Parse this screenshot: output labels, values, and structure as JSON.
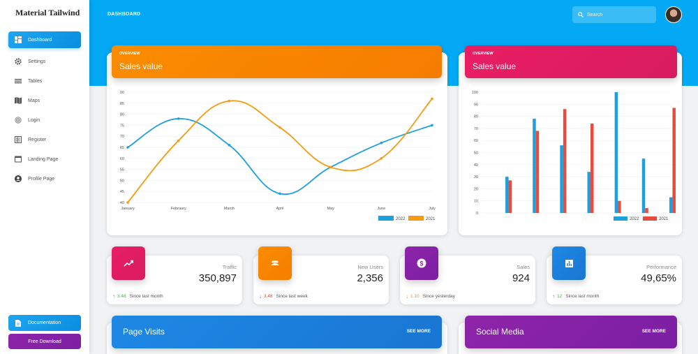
{
  "sidebar": {
    "brand": "Material Tailwind",
    "items": [
      {
        "label": "Dashboard",
        "icon": "dashboard-icon",
        "active": true
      },
      {
        "label": "Settings",
        "icon": "settings-icon"
      },
      {
        "label": "Tables",
        "icon": "tables-icon"
      },
      {
        "label": "Maps",
        "icon": "map-icon"
      },
      {
        "label": "Login",
        "icon": "fingerprint-icon"
      },
      {
        "label": "Register",
        "icon": "register-icon"
      },
      {
        "label": "Landing Page",
        "icon": "web-icon"
      },
      {
        "label": "Profile Page",
        "icon": "account-circle-icon"
      }
    ],
    "documentation_label": "Documentation",
    "free_download_label": "Free Download"
  },
  "header": {
    "page_label": "DASHBOARD",
    "search_placeholder": "Search"
  },
  "colors": {
    "header_blue": "#03a9f4",
    "orange": "#fb8c00",
    "pink": "#e91e63",
    "purple": "#8e24aa",
    "blue_series": "#1e9fe0",
    "orange_series": "#f39c12",
    "red_series": "#e74c3c",
    "green": "#4caf50"
  },
  "line_card": {
    "overview": "OVERVIEW",
    "title": "Sales value"
  },
  "bar_card": {
    "overview": "OVERVIEW",
    "title": "Sales value"
  },
  "chart_data": [
    {
      "type": "line",
      "categories": [
        "January",
        "February",
        "March",
        "April",
        "May",
        "June",
        "July"
      ],
      "series": [
        {
          "name": "2022",
          "values": [
            65,
            78,
            66,
            44,
            56,
            67,
            75
          ],
          "color": "#1e9fe0"
        },
        {
          "name": "2021",
          "values": [
            40,
            68,
            86,
            74,
            56,
            60,
            87
          ],
          "color": "#f39c12"
        }
      ],
      "ylim": [
        40,
        90
      ],
      "yticks": [
        40,
        45,
        50,
        55,
        60,
        65,
        70,
        75,
        80,
        85,
        90
      ],
      "grid": true,
      "legend": "bottom-right"
    },
    {
      "type": "bar",
      "categories": [
        "",
        "",
        "",
        "",
        "",
        "",
        ""
      ],
      "series": [
        {
          "name": "2022",
          "values": [
            30,
            78,
            56,
            34,
            100,
            45,
            13
          ],
          "color": "#1e9fe0"
        },
        {
          "name": "2021",
          "values": [
            27,
            68,
            86,
            74,
            10,
            4,
            87
          ],
          "color": "#e74c3c"
        }
      ],
      "ylim": [
        0,
        100
      ],
      "yticks": [
        0,
        10,
        20,
        30,
        40,
        50,
        60,
        70,
        80,
        90,
        100
      ],
      "grid": true,
      "legend": "bottom-right"
    }
  ],
  "stats": [
    {
      "label": "Traffic",
      "value": "350,897",
      "change": "3.48",
      "direction": "up",
      "change_color": "#4caf50",
      "since": "Since last month",
      "icon": "trending-up-icon",
      "color": "#e91e63"
    },
    {
      "label": "New Users",
      "value": "2,356",
      "change": "3.48",
      "direction": "down",
      "change_color": "#e53935",
      "since": "Since last week",
      "icon": "group-icon",
      "color": "#fb8c00"
    },
    {
      "label": "Sales",
      "value": "924",
      "change": "1.10",
      "direction": "down",
      "change_color": "#fb8c00",
      "since": "Since yesterday",
      "icon": "dollar-icon",
      "color": "#8e24aa"
    },
    {
      "label": "Performance",
      "value": "49,65%",
      "change": "12",
      "direction": "up",
      "change_color": "#4caf50",
      "since": "Since last month",
      "icon": "poll-icon",
      "color": "#1e88e5"
    }
  ],
  "bottom_cards": [
    {
      "title": "Page Visits",
      "action": "SEE MORE"
    },
    {
      "title": "Social Media",
      "action": "SEE MORE"
    }
  ]
}
